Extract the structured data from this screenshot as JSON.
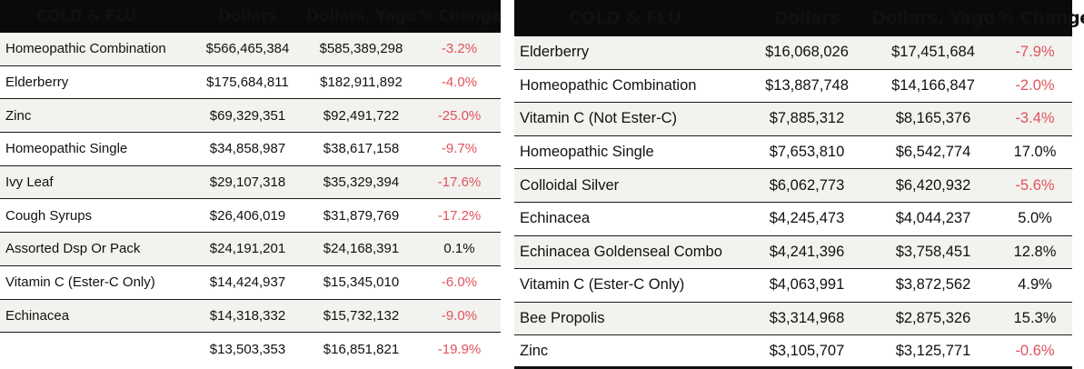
{
  "left_table": {
    "headers": {
      "category": "COLD & FLU",
      "dollars": "Dollars",
      "dollars_yago": "Dollars, Yago",
      "change": "% Change"
    },
    "rows": [
      {
        "name": "Homeopathic Combination",
        "dollars": "$566,465,384",
        "yago": "$585,389,298",
        "change": "-3.2%"
      },
      {
        "name": "Elderberry",
        "dollars": "$175,684,811",
        "yago": "$182,911,892",
        "change": "-4.0%"
      },
      {
        "name": "Zinc",
        "dollars": "$69,329,351",
        "yago": "$92,491,722",
        "change": "-25.0%"
      },
      {
        "name": "Homeopathic Single",
        "dollars": "$34,858,987",
        "yago": "$38,617,158",
        "change": "-9.7%"
      },
      {
        "name": "Ivy Leaf",
        "dollars": "$29,107,318",
        "yago": "$35,329,394",
        "change": "-17.6%"
      },
      {
        "name": "Cough Syrups",
        "dollars": "$26,406,019",
        "yago": "$31,879,769",
        "change": "-17.2%"
      },
      {
        "name": "Assorted Dsp Or Pack",
        "dollars": "$24,191,201",
        "yago": "$24,168,391",
        "change": "0.1%"
      },
      {
        "name": "Vitamin C (Ester-C Only)",
        "dollars": "$14,424,937",
        "yago": "$15,345,010",
        "change": "-6.0%"
      },
      {
        "name": "Echinacea",
        "dollars": "$14,318,332",
        "yago": "$15,732,132",
        "change": "-9.0%"
      },
      {
        "name": "",
        "dollars": "$13,503,353",
        "yago": "$16,851,821",
        "change": "-19.9%"
      }
    ]
  },
  "right_table": {
    "headers": {
      "category": "COLD & FLU",
      "dollars": "Dollars",
      "dollars_yago": "Dollars, Yago",
      "change": "% Change"
    },
    "rows": [
      {
        "name": "Elderberry",
        "dollars": "$16,068,026",
        "yago": "$17,451,684",
        "change": "-7.9%"
      },
      {
        "name": "Homeopathic Combination",
        "dollars": "$13,887,748",
        "yago": "$14,166,847",
        "change": "-2.0%"
      },
      {
        "name": "Vitamin C (Not Ester-C)",
        "dollars": "$7,885,312",
        "yago": "$8,165,376",
        "change": "-3.4%"
      },
      {
        "name": "Homeopathic Single",
        "dollars": "$7,653,810",
        "yago": "$6,542,774",
        "change": "17.0%"
      },
      {
        "name": "Colloidal Silver",
        "dollars": "$6,062,773",
        "yago": "$6,420,932",
        "change": "-5.6%"
      },
      {
        "name": "Echinacea",
        "dollars": "$4,245,473",
        "yago": "$4,044,237",
        "change": "5.0%"
      },
      {
        "name": "Echinacea Goldenseal Combo",
        "dollars": "$4,241,396",
        "yago": "$3,758,451",
        "change": "12.8%"
      },
      {
        "name": "Vitamin C (Ester-C Only)",
        "dollars": "$4,063,991",
        "yago": "$3,872,562",
        "change": "4.9%"
      },
      {
        "name": "Bee Propolis",
        "dollars": "$3,314,968",
        "yago": "$2,875,326",
        "change": "15.3%"
      },
      {
        "name": "Zinc",
        "dollars": "$3,105,707",
        "yago": "$3,125,771",
        "change": "-0.6%"
      }
    ]
  },
  "colors": {
    "header_bg": "#0a0a0a",
    "negative": "#e0535b",
    "positive": "#111111",
    "shade": "#f2f2ef"
  }
}
